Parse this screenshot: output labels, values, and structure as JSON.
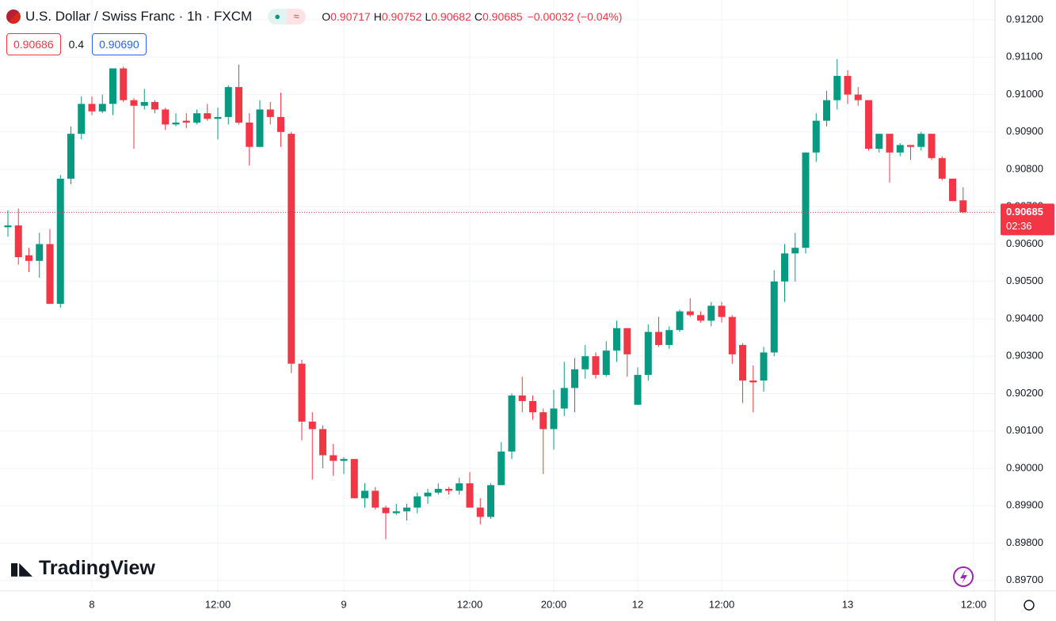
{
  "header": {
    "title": "U.S. Dollar / Swiss Franc · 1h · FXCM",
    "ohlc": [
      {
        "label": "O",
        "value": "0.90717"
      },
      {
        "label": "H",
        "value": "0.90752"
      },
      {
        "label": "L",
        "value": "0.90682"
      },
      {
        "label": "C",
        "value": "0.90685"
      }
    ],
    "change": "−0.00032 (−0.04%)",
    "bid": "0.90686",
    "spread": "0.4",
    "ask": "0.90690"
  },
  "watermark": "TradingView",
  "chart_data": {
    "type": "candlestick",
    "up_color": "#089981",
    "down_color": "#f23645",
    "grid": true,
    "countdown": "02:36",
    "categories": [
      null,
      null,
      null,
      null,
      null,
      null,
      null,
      null,
      "8",
      null,
      null,
      null,
      null,
      null,
      null,
      null,
      null,
      null,
      null,
      null,
      "12:00",
      null,
      null,
      null,
      null,
      null,
      null,
      null,
      null,
      null,
      null,
      null,
      "9",
      null,
      null,
      null,
      null,
      null,
      null,
      null,
      null,
      null,
      null,
      null,
      "12:00",
      null,
      null,
      null,
      null,
      null,
      null,
      null,
      "20:00",
      null,
      null,
      null,
      null,
      null,
      null,
      null,
      "12",
      null,
      null,
      null,
      null,
      null,
      null,
      null,
      "12:00",
      null,
      null,
      null,
      null,
      null,
      null,
      null,
      null,
      null,
      null,
      null,
      "13",
      null,
      null,
      null,
      null,
      null,
      null,
      null,
      null,
      null,
      null,
      null,
      "12:00"
    ],
    "open": [
      0.90645,
      0.9065,
      0.9057,
      0.90555,
      0.906,
      0.9044,
      0.90775,
      0.90895,
      0.90975,
      0.90955,
      0.90975,
      0.9107,
      0.90985,
      0.9097,
      0.9098,
      0.9096,
      0.9092,
      0.9093,
      0.90925,
      0.9095,
      0.90935,
      0.9094,
      0.9102,
      0.90925,
      0.9086,
      0.9096,
      0.9094,
      0.90895,
      0.9028,
      0.90125,
      0.90105,
      0.90035,
      0.9002,
      0.90025,
      0.8992,
      0.8994,
      0.89895,
      0.8988,
      0.89885,
      0.89895,
      0.89925,
      0.89935,
      0.89945,
      0.8994,
      0.8996,
      0.89895,
      0.8987,
      0.89955,
      0.90045,
      0.90195,
      0.9018,
      0.9015,
      0.90105,
      0.9016,
      0.90215,
      0.90265,
      0.903,
      0.9025,
      0.90315,
      0.90375,
      0.9017,
      0.9025,
      0.90365,
      0.9033,
      0.9037,
      0.9042,
      0.9041,
      0.90395,
      0.90435,
      0.90405,
      0.9033,
      0.90235,
      0.90235,
      0.9031,
      0.905,
      0.90575,
      0.9059,
      0.90845,
      0.9093,
      0.90985,
      0.9105,
      0.91,
      0.90985,
      0.90855,
      0.90895,
      0.90845,
      0.90865,
      0.9086,
      0.90895,
      0.9083,
      0.90775,
      0.90717,
      null
    ],
    "high": [
      0.9069,
      0.90695,
      0.9059,
      0.9063,
      0.9064,
      0.90785,
      0.90915,
      0.90995,
      0.90995,
      0.91,
      0.9107,
      0.91075,
      0.9099,
      0.91015,
      0.90985,
      0.90965,
      0.9095,
      0.9095,
      0.9096,
      0.90975,
      0.90965,
      0.91025,
      0.9108,
      0.9095,
      0.90985,
      0.9098,
      0.91005,
      0.909,
      0.9029,
      0.9015,
      0.90115,
      0.90065,
      0.9003,
      0.90025,
      0.8996,
      0.8995,
      0.899,
      0.89905,
      0.89905,
      0.89935,
      0.89945,
      0.8996,
      0.8995,
      0.89975,
      0.8999,
      0.8992,
      0.8996,
      0.9007,
      0.902,
      0.90245,
      0.90195,
      0.9016,
      0.9021,
      0.90285,
      0.90295,
      0.9033,
      0.9031,
      0.9034,
      0.90395,
      0.90375,
      0.9027,
      0.90385,
      0.90405,
      0.9038,
      0.90425,
      0.90455,
      0.9042,
      0.90445,
      0.90445,
      0.9041,
      0.90335,
      0.90275,
      0.90325,
      0.9053,
      0.906,
      0.9063,
      0.90845,
      0.9095,
      0.9101,
      0.91095,
      0.91065,
      0.9102,
      0.90985,
      0.90895,
      0.90895,
      0.9087,
      0.90865,
      0.909,
      0.90895,
      0.90835,
      0.90775,
      0.90752,
      null
    ],
    "low": [
      0.9062,
      0.90545,
      0.90525,
      0.9051,
      0.9044,
      0.9043,
      0.9076,
      0.9088,
      0.90945,
      0.9095,
      0.90945,
      0.9098,
      0.90855,
      0.9096,
      0.9095,
      0.90905,
      0.90915,
      0.9091,
      0.9092,
      0.9093,
      0.9088,
      0.9092,
      0.9092,
      0.9081,
      0.9086,
      0.9092,
      0.9086,
      0.90255,
      0.90075,
      0.8997,
      0.9,
      0.8998,
      0.89985,
      0.8992,
      0.89895,
      0.8989,
      0.8981,
      0.89875,
      0.8986,
      0.8988,
      0.89905,
      0.8993,
      0.8993,
      0.8993,
      0.89895,
      0.8985,
      0.89865,
      0.89955,
      0.90025,
      0.9015,
      0.9013,
      0.89985,
      0.9005,
      0.9014,
      0.9015,
      0.9024,
      0.9024,
      0.90245,
      0.90285,
      0.90245,
      0.9017,
      0.90235,
      0.90325,
      0.9032,
      0.90365,
      0.90405,
      0.9039,
      0.9038,
      0.9039,
      0.9028,
      0.90175,
      0.9015,
      0.90205,
      0.903,
      0.90445,
      0.905,
      0.90575,
      0.9082,
      0.90915,
      0.9096,
      0.90975,
      0.9097,
      0.9085,
      0.90845,
      0.90765,
      0.90835,
      0.90825,
      0.9085,
      0.90825,
      0.9077,
      0.90715,
      0.90682,
      null
    ],
    "close": [
      0.9065,
      0.90565,
      0.90555,
      0.906,
      0.9044,
      0.90775,
      0.90895,
      0.90975,
      0.90955,
      0.90975,
      0.9107,
      0.90985,
      0.9097,
      0.9098,
      0.9096,
      0.9092,
      0.90925,
      0.90925,
      0.9095,
      0.90935,
      0.9094,
      0.9102,
      0.90925,
      0.9086,
      0.9096,
      0.9094,
      0.909,
      0.9028,
      0.90125,
      0.90105,
      0.90035,
      0.9002,
      0.90025,
      0.8992,
      0.8994,
      0.89895,
      0.8988,
      0.89885,
      0.89895,
      0.89925,
      0.89935,
      0.89945,
      0.8994,
      0.8996,
      0.89895,
      0.8987,
      0.89955,
      0.90045,
      0.90195,
      0.9018,
      0.9015,
      0.90105,
      0.9016,
      0.90215,
      0.90265,
      0.903,
      0.9025,
      0.90315,
      0.90375,
      0.90305,
      0.9025,
      0.90365,
      0.9033,
      0.9037,
      0.9042,
      0.9041,
      0.90395,
      0.90435,
      0.90405,
      0.90305,
      0.90235,
      0.9023,
      0.9031,
      0.905,
      0.90575,
      0.9059,
      0.90845,
      0.9093,
      0.90985,
      0.9105,
      0.91,
      0.90985,
      0.90855,
      0.90895,
      0.90845,
      0.90865,
      0.9086,
      0.90895,
      0.9083,
      0.90775,
      0.90715,
      0.90685,
      null
    ],
    "ylim": [
      0.89672,
      0.91253
    ],
    "yticks": [
      {
        "value": 0.912,
        "label": "0.91200"
      },
      {
        "value": 0.911,
        "label": "0.91100"
      },
      {
        "value": 0.91,
        "label": "0.91000"
      },
      {
        "value": 0.909,
        "label": "0.90900"
      },
      {
        "value": 0.908,
        "label": "0.90800"
      },
      {
        "value": 0.907,
        "label": "0.90700"
      },
      {
        "value": 0.906,
        "label": "0.90600"
      },
      {
        "value": 0.905,
        "label": "0.90500"
      },
      {
        "value": 0.904,
        "label": "0.90400"
      },
      {
        "value": 0.903,
        "label": "0.90300"
      },
      {
        "value": 0.902,
        "label": "0.90200"
      },
      {
        "value": 0.901,
        "label": "0.90100"
      },
      {
        "value": 0.9,
        "label": "0.90000"
      },
      {
        "value": 0.899,
        "label": "0.89900"
      },
      {
        "value": 0.898,
        "label": "0.89800"
      },
      {
        "value": 0.897,
        "label": "0.89700"
      }
    ]
  }
}
